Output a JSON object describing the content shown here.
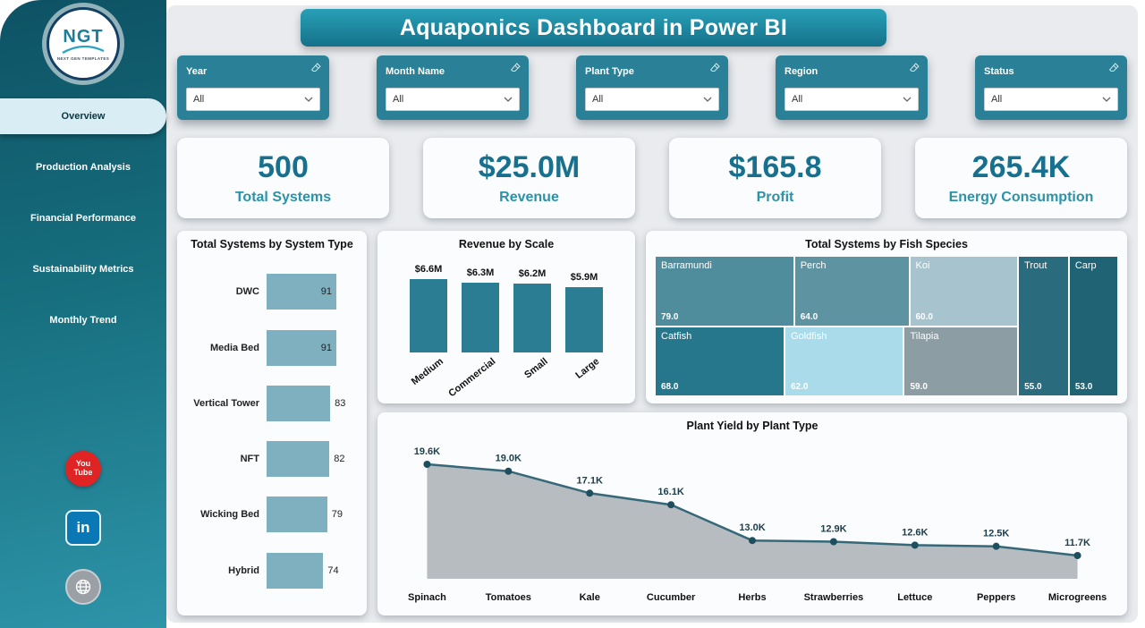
{
  "title_banner": "Aquaponics Dashboard in Power BI",
  "colors": {
    "sidebar_teal": "#17707f",
    "accent_teal": "#2a8096",
    "kpi_number": "#17718e",
    "kpi_label": "#2a93aa"
  },
  "sidebar": {
    "logo": {
      "text": "NGT",
      "subtext": "NEXT GEN TEMPLATES"
    },
    "items": [
      {
        "label": "Overview",
        "active": true
      },
      {
        "label": "Production Analysis",
        "active": false
      },
      {
        "label": "Financial Performance",
        "active": false
      },
      {
        "label": "Sustainability Metrics",
        "active": false
      },
      {
        "label": "Monthly Trend",
        "active": false
      }
    ],
    "social": {
      "youtube": [
        "You",
        "Tube"
      ],
      "linkedin": "in"
    }
  },
  "filters": [
    {
      "label": "Year",
      "value": "All"
    },
    {
      "label": "Month Name",
      "value": "All"
    },
    {
      "label": "Plant Type",
      "value": "All"
    },
    {
      "label": "Region",
      "value": "All"
    },
    {
      "label": "Status",
      "value": "All"
    }
  ],
  "kpis": [
    {
      "value": "500",
      "label": "Total Systems"
    },
    {
      "value": "$25.0M",
      "label": "Revenue"
    },
    {
      "value": "$165.8",
      "label": "Profit"
    },
    {
      "value": "265.4K",
      "label": "Energy Consumption"
    }
  ],
  "chart_data": [
    {
      "type": "bar",
      "orientation": "horizontal",
      "title": "Total Systems by System Type",
      "categories": [
        "DWC",
        "Media Bed",
        "Vertical Tower",
        "NFT",
        "Wicking Bed",
        "Hybrid"
      ],
      "values": [
        91,
        91,
        83,
        82,
        79,
        74
      ],
      "xlim": [
        0,
        91
      ],
      "bar_color": "#7eb0bf"
    },
    {
      "type": "bar",
      "orientation": "vertical",
      "title": "Revenue by Scale",
      "categories": [
        "Medium",
        "Commercial",
        "Small",
        "Large"
      ],
      "values": [
        6.6,
        6.3,
        6.2,
        5.9
      ],
      "value_labels": [
        "$6.6M",
        "$6.3M",
        "$6.2M",
        "$5.9M"
      ],
      "unit": "$M",
      "bar_color": "#2a7d92"
    },
    {
      "type": "treemap",
      "title": "Total Systems by Fish Species",
      "cells": [
        {
          "name": "Barramundi",
          "value": 79.0,
          "value_label": "79.0",
          "color": "#4f8d9d",
          "row": 1
        },
        {
          "name": "Perch",
          "value": 64.0,
          "value_label": "64.0",
          "color": "#5e93a2",
          "row": 1
        },
        {
          "name": "Koi",
          "value": 60.0,
          "value_label": "60.0",
          "color": "#a7c3ce",
          "row": 1
        },
        {
          "name": "Catfish",
          "value": 68.0,
          "value_label": "68.0",
          "color": "#27778c",
          "row": 2
        },
        {
          "name": "Goldfish",
          "value": 62.0,
          "value_label": "62.0",
          "color": "#a9dbeb",
          "row": 2
        },
        {
          "name": "Tilapia",
          "value": 59.0,
          "value_label": "59.0",
          "color": "#8c9da3",
          "row": 2
        },
        {
          "name": "Trout",
          "value": 55.0,
          "value_label": "55.0",
          "color": "#2a6b7e",
          "row": "full"
        },
        {
          "name": "Carp",
          "value": 53.0,
          "value_label": "53.0",
          "color": "#1f6375",
          "row": "full"
        }
      ]
    },
    {
      "type": "area",
      "title": "Plant Yield by Plant Type",
      "categories": [
        "Spinach",
        "Tomatoes",
        "Kale",
        "Cucumber",
        "Herbs",
        "Strawberries",
        "Lettuce",
        "Peppers",
        "Microgreens"
      ],
      "values": [
        19.6,
        19.0,
        17.1,
        16.1,
        13.0,
        12.9,
        12.6,
        12.5,
        11.7
      ],
      "value_labels": [
        "19.6K",
        "19.0K",
        "17.1K",
        "16.1K",
        "13.0K",
        "12.9K",
        "12.6K",
        "12.5K",
        "11.7K"
      ],
      "line_color": "#35697a",
      "area_color": "#b7bcc0",
      "marker_color": "#1e4f5e"
    }
  ]
}
